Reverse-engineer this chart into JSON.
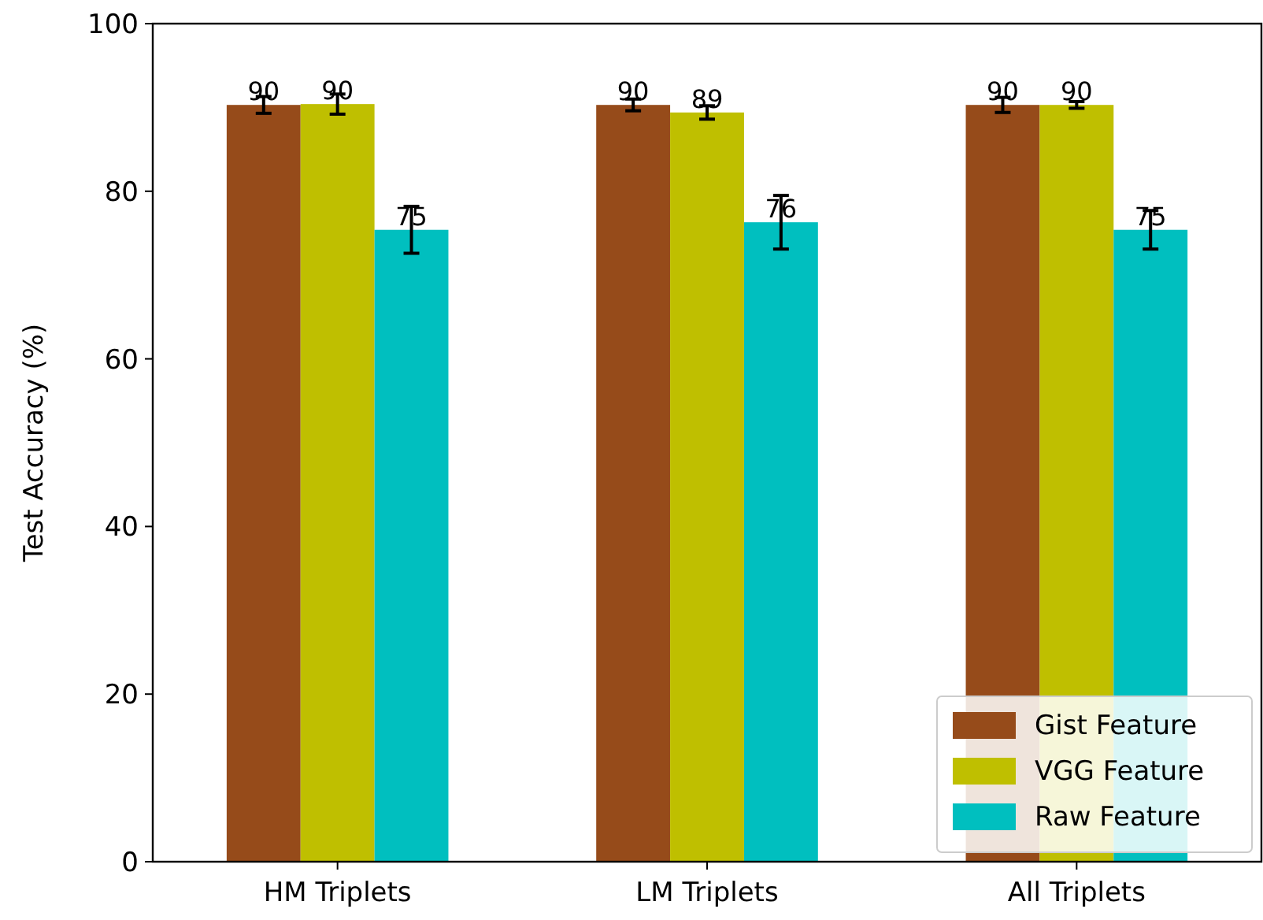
{
  "chart_data": {
    "type": "bar",
    "ylabel": "Test Accuracy (%)",
    "categories": [
      "HM Triplets",
      "LM Triplets",
      "All Triplets"
    ],
    "series": [
      {
        "name": "Gist Feature",
        "color": "#964b1a",
        "values": [
          90.3,
          90.3,
          90.3
        ],
        "errors": [
          1.0,
          0.7,
          0.9
        ],
        "value_labels": [
          "90",
          "90",
          "90"
        ]
      },
      {
        "name": "VGG Feature",
        "color": "#bfbf00",
        "values": [
          90.4,
          89.4,
          90.3
        ],
        "errors": [
          1.2,
          0.8,
          0.4
        ],
        "value_labels": [
          "90",
          "89",
          "90"
        ]
      },
      {
        "name": "Raw Feature",
        "color": "#00bfbf",
        "values": [
          75.4,
          76.3,
          75.4
        ],
        "errors": [
          2.8,
          3.2,
          2.3
        ],
        "value_labels": [
          "75",
          "76",
          "75"
        ]
      }
    ],
    "ylim": [
      0,
      100
    ],
    "yticks": [
      0,
      20,
      40,
      60,
      80,
      100
    ],
    "legend": "bottom right",
    "grid": false
  }
}
